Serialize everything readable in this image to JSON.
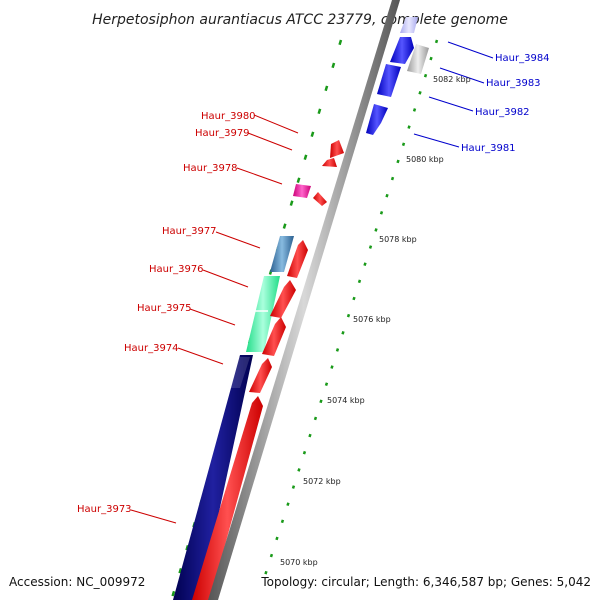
{
  "title": "Herpetosiphon aurantiacus ATCC 23779, complete genome",
  "footer": {
    "accession": "Accession: NC_009972",
    "info": "Topology: circular; Length: 6,346,587 bp; Genes: 5,042"
  },
  "colors": {
    "reverse_label": "#cc0000",
    "forward_label": "#0000cc"
  },
  "ticks": [
    "5070 kbp",
    "5072 kbp",
    "5074 kbp",
    "5076 kbp",
    "5078 kbp",
    "5080 kbp",
    "5082 kbp"
  ],
  "reverse_genes": [
    "Haur_3973",
    "Haur_3974",
    "Haur_3975",
    "Haur_3976",
    "Haur_3977",
    "Haur_3978",
    "Haur_3979",
    "Haur_3980"
  ],
  "forward_genes": [
    "Haur_3981",
    "Haur_3982",
    "Haur_3983",
    "Haur_3984"
  ]
}
